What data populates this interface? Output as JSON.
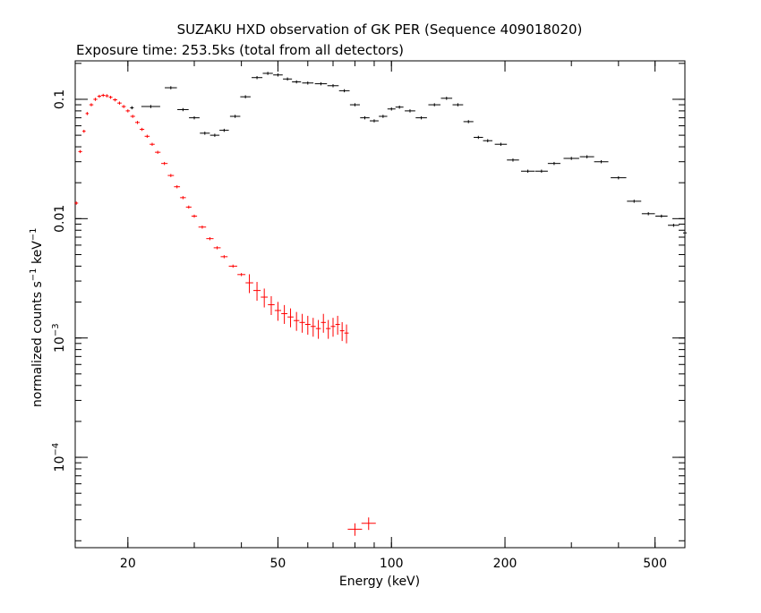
{
  "chart_data": {
    "type": "scatter",
    "title": "SUZAKU HXD observation of GK PER (Sequence 409018020)",
    "subtitle": "Exposure time: 253.5ks (total from all detectors)",
    "xlabel": "Energy (keV)",
    "ylabel_main": "normalized counts s",
    "ylabel_mid": " keV",
    "ylabel_exp": "−1",
    "x_scale": "log",
    "y_scale": "log",
    "xlim": [
      14.5,
      600
    ],
    "ylim": [
      1.75e-05,
      0.21
    ],
    "x_ticks": [
      {
        "value": 20,
        "label": "20"
      },
      {
        "value": 50,
        "label": "50"
      },
      {
        "value": 100,
        "label": "100"
      },
      {
        "value": 200,
        "label": "200"
      },
      {
        "value": 500,
        "label": "500"
      }
    ],
    "y_ticks": [
      {
        "value": 0.1,
        "base": "0.1",
        "exp": ""
      },
      {
        "value": 0.01,
        "base": "0.01",
        "exp": ""
      },
      {
        "value": 0.001,
        "base": "10",
        "exp": "−3"
      },
      {
        "value": 0.0001,
        "base": "10",
        "exp": "−4"
      }
    ],
    "grid": false,
    "legend": "none",
    "series": [
      {
        "color": "#ff0000",
        "marker": "cross",
        "points": [
          {
            "x": 14.6,
            "y": 0.0135
          },
          {
            "x": 14.95,
            "y": 0.0365
          },
          {
            "x": 15.3,
            "y": 0.054
          },
          {
            "x": 15.6,
            "y": 0.076
          },
          {
            "x": 16.0,
            "y": 0.09
          },
          {
            "x": 16.4,
            "y": 0.1
          },
          {
            "x": 16.8,
            "y": 0.106
          },
          {
            "x": 17.2,
            "y": 0.108
          },
          {
            "x": 17.6,
            "y": 0.107
          },
          {
            "x": 18.0,
            "y": 0.104
          },
          {
            "x": 18.5,
            "y": 0.099
          },
          {
            "x": 19.0,
            "y": 0.093
          },
          {
            "x": 19.5,
            "y": 0.087
          },
          {
            "x": 20.0,
            "y": 0.08
          },
          {
            "x": 20.6,
            "y": 0.072
          },
          {
            "x": 21.2,
            "y": 0.064
          },
          {
            "x": 21.8,
            "y": 0.056
          },
          {
            "x": 22.5,
            "y": 0.049
          },
          {
            "x": 23.2,
            "y": 0.042
          },
          {
            "x": 24.0,
            "y": 0.036
          },
          {
            "x": 25.0,
            "y": 0.029
          },
          {
            "x": 26.0,
            "y": 0.023
          },
          {
            "x": 27.0,
            "y": 0.0185
          },
          {
            "x": 28.0,
            "y": 0.015
          },
          {
            "x": 29.0,
            "y": 0.0125
          },
          {
            "x": 30.0,
            "y": 0.0105
          },
          {
            "x": 31.5,
            "y": 0.0085
          },
          {
            "x": 33.0,
            "y": 0.0068
          },
          {
            "x": 34.5,
            "y": 0.0057
          },
          {
            "x": 36.0,
            "y": 0.0048
          },
          {
            "x": 38.0,
            "y": 0.004
          },
          {
            "x": 40.0,
            "y": 0.0034
          },
          {
            "x": 42.0,
            "y": 0.0029
          },
          {
            "x": 44.0,
            "y": 0.0025
          },
          {
            "x": 46.0,
            "y": 0.0022
          },
          {
            "x": 48.0,
            "y": 0.0019
          },
          {
            "x": 50.0,
            "y": 0.0017
          },
          {
            "x": 52.0,
            "y": 0.0016
          },
          {
            "x": 54.0,
            "y": 0.0015
          },
          {
            "x": 56.0,
            "y": 0.0014
          },
          {
            "x": 58.0,
            "y": 0.00135
          },
          {
            "x": 60.0,
            "y": 0.0013
          },
          {
            "x": 62.0,
            "y": 0.00125
          },
          {
            "x": 64.0,
            "y": 0.0012
          },
          {
            "x": 66.0,
            "y": 0.00135
          },
          {
            "x": 68.0,
            "y": 0.0012
          },
          {
            "x": 70.0,
            "y": 0.00125
          },
          {
            "x": 72.0,
            "y": 0.0013
          },
          {
            "x": 74.0,
            "y": 0.00115
          },
          {
            "x": 76.0,
            "y": 0.0011
          },
          {
            "x": 80.0,
            "y": 2.5e-05
          },
          {
            "x": 87.0,
            "y": 2.8e-05
          }
        ]
      },
      {
        "color": "#000000",
        "marker": "cross",
        "points": [
          {
            "x": 20.5,
            "y": 0.085
          },
          {
            "x": 23.0,
            "y": 0.087
          },
          {
            "x": 26.0,
            "y": 0.125
          },
          {
            "x": 28.0,
            "y": 0.082
          },
          {
            "x": 30.0,
            "y": 0.07
          },
          {
            "x": 32.0,
            "y": 0.052
          },
          {
            "x": 34.0,
            "y": 0.05
          },
          {
            "x": 36.0,
            "y": 0.055
          },
          {
            "x": 38.5,
            "y": 0.072
          },
          {
            "x": 41.0,
            "y": 0.105
          },
          {
            "x": 44.0,
            "y": 0.152
          },
          {
            "x": 47.0,
            "y": 0.165
          },
          {
            "x": 50.0,
            "y": 0.16
          },
          {
            "x": 53.0,
            "y": 0.148
          },
          {
            "x": 56.0,
            "y": 0.14
          },
          {
            "x": 60.0,
            "y": 0.137
          },
          {
            "x": 65.0,
            "y": 0.135
          },
          {
            "x": 70.0,
            "y": 0.13
          },
          {
            "x": 75.0,
            "y": 0.118
          },
          {
            "x": 80.0,
            "y": 0.09
          },
          {
            "x": 85.0,
            "y": 0.07
          },
          {
            "x": 90.0,
            "y": 0.066
          },
          {
            "x": 95.0,
            "y": 0.072
          },
          {
            "x": 100.0,
            "y": 0.083
          },
          {
            "x": 105.0,
            "y": 0.086
          },
          {
            "x": 112.0,
            "y": 0.08
          },
          {
            "x": 120.0,
            "y": 0.07
          },
          {
            "x": 130.0,
            "y": 0.09
          },
          {
            "x": 140.0,
            "y": 0.102
          },
          {
            "x": 150.0,
            "y": 0.09
          },
          {
            "x": 160.0,
            "y": 0.065
          },
          {
            "x": 170.0,
            "y": 0.048
          },
          {
            "x": 180.0,
            "y": 0.045
          },
          {
            "x": 195.0,
            "y": 0.042
          },
          {
            "x": 210.0,
            "y": 0.031
          },
          {
            "x": 230.0,
            "y": 0.025
          },
          {
            "x": 250.0,
            "y": 0.025
          },
          {
            "x": 270.0,
            "y": 0.029
          },
          {
            "x": 300.0,
            "y": 0.032
          },
          {
            "x": 330.0,
            "y": 0.033
          },
          {
            "x": 360.0,
            "y": 0.03
          },
          {
            "x": 400.0,
            "y": 0.022
          },
          {
            "x": 440.0,
            "y": 0.014
          },
          {
            "x": 480.0,
            "y": 0.011
          },
          {
            "x": 520.0,
            "y": 0.0105
          },
          {
            "x": 560.0,
            "y": 0.0088
          },
          {
            "x": 600.0,
            "y": 0.0076
          }
        ]
      }
    ]
  }
}
